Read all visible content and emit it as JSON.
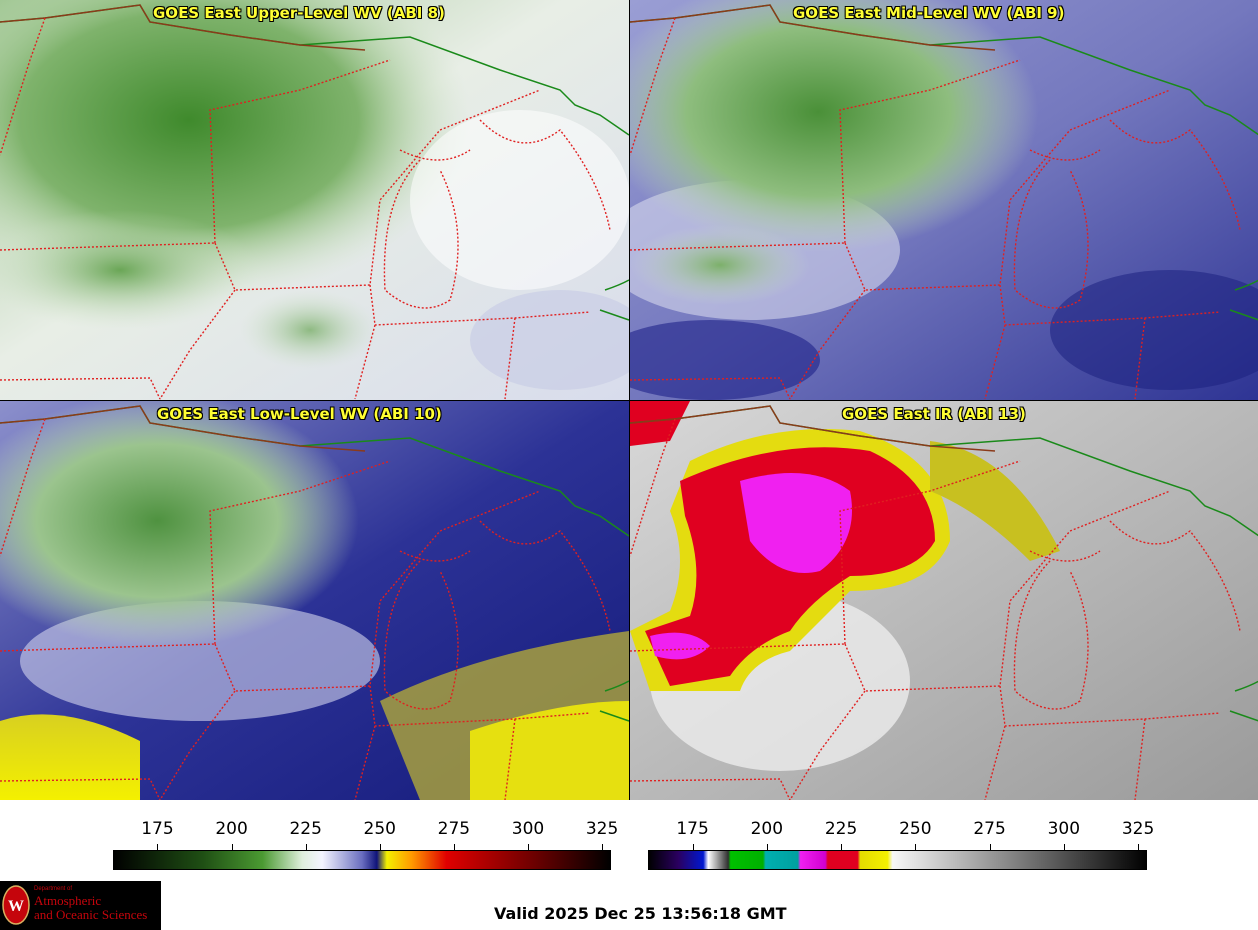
{
  "panels": [
    {
      "title": "GOES East Upper-Level WV (ABI 8)",
      "scheme": "wv_upper"
    },
    {
      "title": "GOES East Mid-Level WV (ABI 9)",
      "scheme": "wv_mid"
    },
    {
      "title": "GOES East Low-Level WV (ABI 10)",
      "scheme": "wv_low"
    },
    {
      "title": "GOES East IR (ABI 13)",
      "scheme": "ir"
    }
  ],
  "colorbars": [
    {
      "name": "wv-colorbar",
      "ticks": [
        "175",
        "200",
        "225",
        "250",
        "275",
        "300",
        "325"
      ],
      "range": [
        160,
        328
      ]
    },
    {
      "name": "ir-colorbar",
      "ticks": [
        "175",
        "200",
        "225",
        "250",
        "275",
        "300",
        "325"
      ],
      "range": [
        160,
        328
      ]
    }
  ],
  "valid_time": "Valid 2025 Dec 25 13:56:18 GMT",
  "logo": {
    "line1": "Department of",
    "line2": "Atmospheric",
    "line3": "and Oceanic Sciences"
  },
  "colors": {
    "border_state": "#e02020",
    "border_country": "#8b3a1a",
    "border_canada": "#1a8a1a",
    "title": "#ffff33"
  }
}
